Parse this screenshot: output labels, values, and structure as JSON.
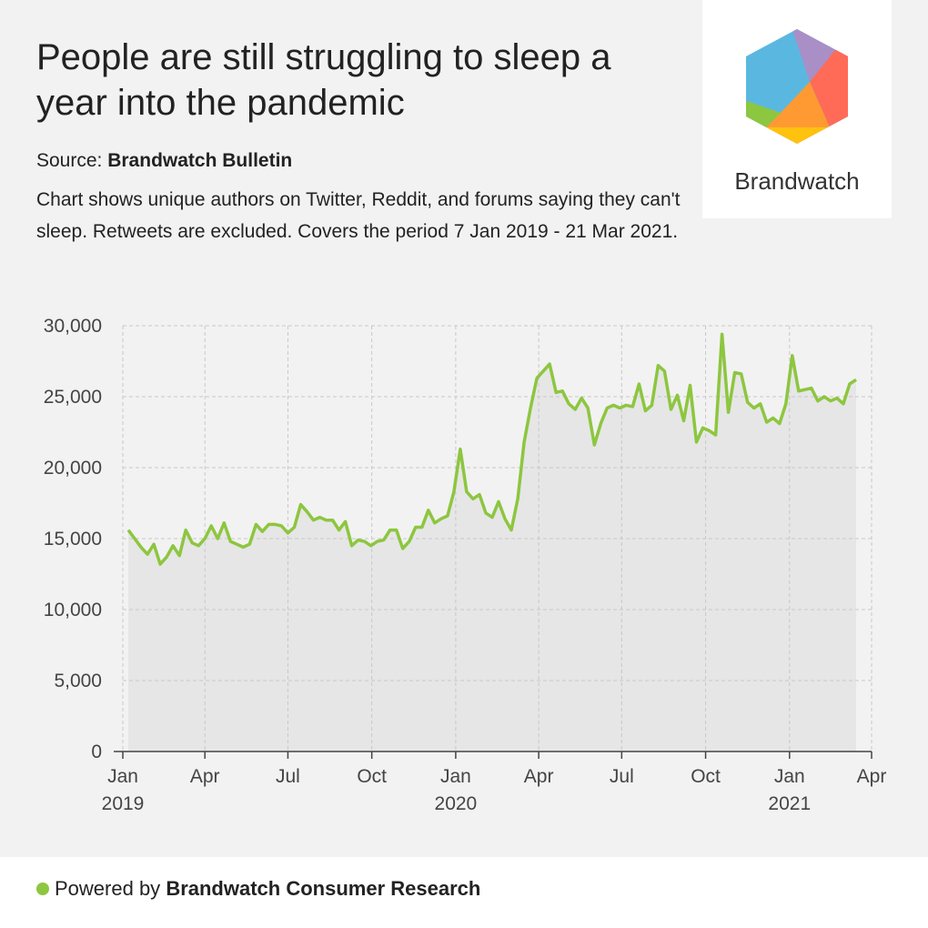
{
  "header": {
    "title": "People are still struggling to sleep a year into the pandemic",
    "source_label": "Source:",
    "source": "Brandwatch Bulletin",
    "description": "Chart shows unique authors on Twitter, Reddit, and forums saying they can't sleep. Retweets are excluded. Covers the period 7 Jan 2019 - 21 Mar 2021.",
    "logo_text": "Brandwatch"
  },
  "footer": {
    "prefix": "Powered by",
    "brand": "Brandwatch Consumer Research"
  },
  "chart_data": {
    "type": "area",
    "color": "#8dc63f",
    "fill": "#e6e6e6",
    "grid": true,
    "x": [
      "2019-01-07",
      "2019-01-14",
      "2019-01-21",
      "2019-01-28",
      "2019-02-04",
      "2019-02-11",
      "2019-02-18",
      "2019-02-25",
      "2019-03-04",
      "2019-03-11",
      "2019-03-18",
      "2019-03-25",
      "2019-04-01",
      "2019-04-08",
      "2019-04-15",
      "2019-04-22",
      "2019-04-29",
      "2019-05-06",
      "2019-05-13",
      "2019-05-20",
      "2019-05-27",
      "2019-06-03",
      "2019-06-10",
      "2019-06-17",
      "2019-06-24",
      "2019-07-01",
      "2019-07-08",
      "2019-07-15",
      "2019-07-22",
      "2019-07-29",
      "2019-08-05",
      "2019-08-12",
      "2019-08-19",
      "2019-08-26",
      "2019-09-02",
      "2019-09-09",
      "2019-09-16",
      "2019-09-23",
      "2019-09-30",
      "2019-10-07",
      "2019-10-14",
      "2019-10-21",
      "2019-10-28",
      "2019-11-04",
      "2019-11-11",
      "2019-11-18",
      "2019-11-25",
      "2019-12-02",
      "2019-12-09",
      "2019-12-16",
      "2019-12-23",
      "2019-12-30",
      "2020-01-06",
      "2020-01-13",
      "2020-01-20",
      "2020-01-27",
      "2020-02-03",
      "2020-02-10",
      "2020-02-17",
      "2020-02-24",
      "2020-03-02",
      "2020-03-09",
      "2020-03-16",
      "2020-03-23",
      "2020-03-30",
      "2020-04-06",
      "2020-04-13",
      "2020-04-20",
      "2020-04-27",
      "2020-05-04",
      "2020-05-11",
      "2020-05-18",
      "2020-05-25",
      "2020-06-01",
      "2020-06-08",
      "2020-06-15",
      "2020-06-22",
      "2020-06-29",
      "2020-07-06",
      "2020-07-13",
      "2020-07-20",
      "2020-07-27",
      "2020-08-03",
      "2020-08-10",
      "2020-08-17",
      "2020-08-24",
      "2020-08-31",
      "2020-09-07",
      "2020-09-14",
      "2020-09-21",
      "2020-09-28",
      "2020-10-05",
      "2020-10-12",
      "2020-10-19",
      "2020-10-26",
      "2020-11-02",
      "2020-11-09",
      "2020-11-16",
      "2020-11-23",
      "2020-11-30",
      "2020-12-07",
      "2020-12-14",
      "2020-12-21",
      "2020-12-28",
      "2021-01-04",
      "2021-01-11",
      "2021-01-18",
      "2021-01-25",
      "2021-02-01",
      "2021-02-08",
      "2021-02-15",
      "2021-02-22",
      "2021-03-01",
      "2021-03-08",
      "2021-03-15"
    ],
    "values": [
      15600,
      15000,
      14400,
      13900,
      14600,
      13200,
      13700,
      14500,
      13800,
      15600,
      14700,
      14500,
      15000,
      15900,
      15000,
      16100,
      14800,
      14600,
      14400,
      14600,
      16000,
      15500,
      16000,
      16000,
      15900,
      15400,
      15800,
      17400,
      16900,
      16300,
      16500,
      16300,
      16300,
      15600,
      16200,
      14500,
      14900,
      14800,
      14500,
      14800,
      14900,
      15600,
      15600,
      14300,
      14800,
      15800,
      15800,
      17000,
      16100,
      16400,
      16600,
      18300,
      21300,
      18300,
      17800,
      18100,
      16800,
      16500,
      17600,
      16400,
      15600,
      17800,
      21800,
      24200,
      26300,
      26800,
      27300,
      25300,
      25400,
      24500,
      24100,
      24900,
      24200,
      21600,
      23100,
      24200,
      24400,
      24200,
      24400,
      24300,
      25900,
      24000,
      24400,
      27200,
      26800,
      24100,
      25100,
      23300,
      25800,
      21800,
      22800,
      22600,
      22300,
      29400,
      23900,
      26700,
      26600,
      24600,
      24200,
      24500,
      23200,
      23500,
      23100,
      24500,
      27900,
      25400,
      25500,
      25600,
      24700,
      25000,
      24700,
      24900,
      24500,
      25900,
      26200
    ],
    "xlim": [
      "2019-01-01",
      "2021-04-01"
    ],
    "xticks": [
      {
        "value": "2019-01-01",
        "label": "Jan 2019"
      },
      {
        "value": "2019-04-01",
        "label": "Apr"
      },
      {
        "value": "2019-07-01",
        "label": "Jul"
      },
      {
        "value": "2019-10-01",
        "label": "Oct"
      },
      {
        "value": "2020-01-01",
        "label": "Jan 2020"
      },
      {
        "value": "2020-04-01",
        "label": "Apr"
      },
      {
        "value": "2020-07-01",
        "label": "Jul"
      },
      {
        "value": "2020-10-01",
        "label": "Oct"
      },
      {
        "value": "2021-01-01",
        "label": "Jan 2021"
      },
      {
        "value": "2021-04-01",
        "label": "Apr"
      }
    ],
    "ylim": [
      0,
      30000
    ],
    "yticks": [
      0,
      {
        "value": 5000,
        "label": "5,000"
      },
      {
        "value": 10000,
        "label": "10,000"
      },
      {
        "value": 15000,
        "label": "15,000"
      },
      {
        "value": 20000,
        "label": "20,000"
      },
      {
        "value": 25000,
        "label": "25,000"
      },
      {
        "value": 30000,
        "label": "30,000"
      }
    ]
  }
}
